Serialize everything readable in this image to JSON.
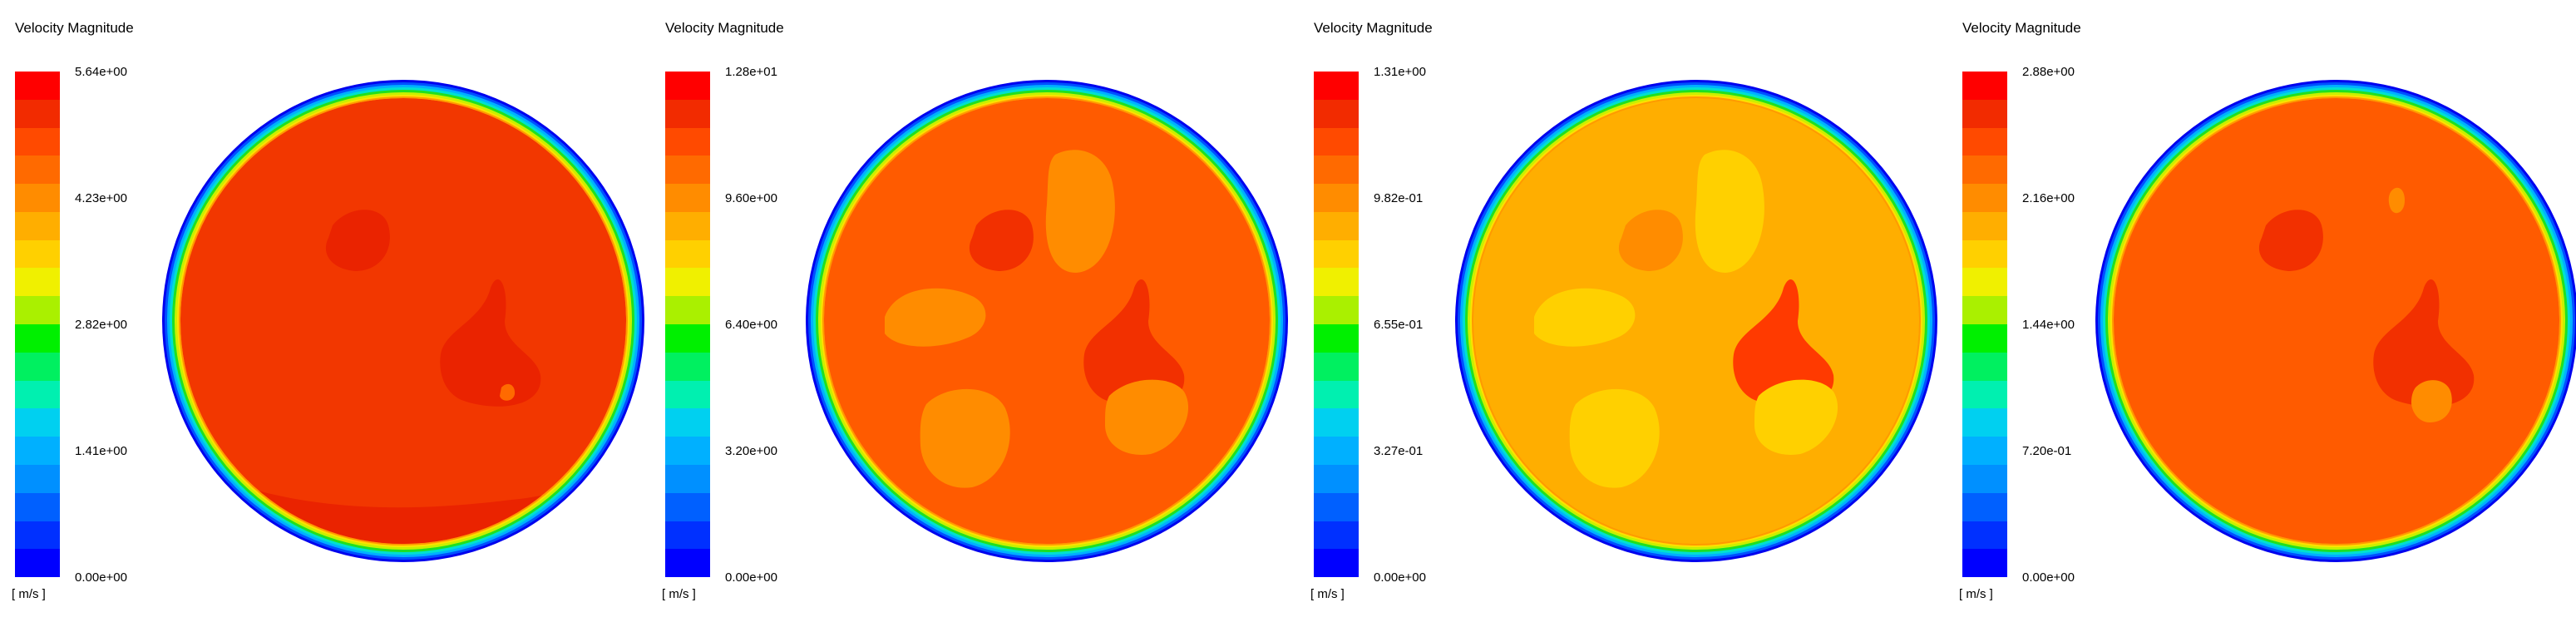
{
  "colormap": [
    "#ff0000",
    "#f22b00",
    "#ff4a00",
    "#ff6a00",
    "#ff8c00",
    "#ffae00",
    "#ffd000",
    "#f0f000",
    "#aaf000",
    "#00f000",
    "#00f060",
    "#00f0b0",
    "#00d0f0",
    "#00b0ff",
    "#0090ff",
    "#0060ff",
    "#0030ff",
    "#0000ff"
  ],
  "panels": [
    {
      "title": "Velocity Magnitude",
      "unit": "[ m/s ]",
      "ticks": [
        "5.64e+00",
        "4.23e+00",
        "2.82e+00",
        "1.41e+00",
        "0.00e+00"
      ],
      "field": {
        "base": "#f23700",
        "blobs": [
          {
            "color": "#ea2300",
            "shape": "hook-left"
          },
          {
            "color": "#ea2300",
            "shape": "hook-right"
          },
          {
            "color": "#ff6a00",
            "shape": "dot"
          },
          {
            "color": "#ea2300",
            "shape": "bottom-band"
          }
        ]
      }
    },
    {
      "title": "Velocity Magnitude",
      "unit": "[ m/s ]",
      "ticks": [
        "1.28e+01",
        "9.60e+00",
        "6.40e+00",
        "3.20e+00",
        "0.00e+00"
      ],
      "field": {
        "base": "#ff5b00",
        "blobs": [
          {
            "color": "#f23000",
            "shape": "hook-left"
          },
          {
            "color": "#ff8c00",
            "shape": "oval-top"
          },
          {
            "color": "#ff8c00",
            "shape": "oval-left"
          },
          {
            "color": "#f23000",
            "shape": "hook-right"
          },
          {
            "color": "#ff8c00",
            "shape": "oval-bottom-left"
          },
          {
            "color": "#ff8c00",
            "shape": "oval-right"
          }
        ]
      }
    },
    {
      "title": "Velocity Magnitude",
      "unit": "[ m/s ]",
      "ticks": [
        "1.31e+00",
        "9.82e-01",
        "6.55e-01",
        "3.27e-01",
        "0.00e+00"
      ],
      "field": {
        "base": "#ffae00",
        "blobs": [
          {
            "color": "#ff8c00",
            "shape": "hook-left"
          },
          {
            "color": "#ffd000",
            "shape": "oval-top"
          },
          {
            "color": "#ffd000",
            "shape": "oval-left"
          },
          {
            "color": "#ff3a00",
            "shape": "hook-right"
          },
          {
            "color": "#ffd000",
            "shape": "oval-bottom-left"
          },
          {
            "color": "#ffd000",
            "shape": "oval-right"
          }
        ]
      }
    },
    {
      "title": "Velocity Magnitude",
      "unit": "[ m/s ]",
      "ticks": [
        "2.88e+00",
        "2.16e+00",
        "1.44e+00",
        "7.20e-01",
        "0.00e+00"
      ],
      "field": {
        "base": "#ff5b00",
        "blobs": [
          {
            "color": "#f23000",
            "shape": "hook-left"
          },
          {
            "color": "#ff8c00",
            "shape": "dot-top"
          },
          {
            "color": "#f23000",
            "shape": "hook-right"
          },
          {
            "color": "#ff8c00",
            "shape": "oval-right-small"
          }
        ]
      }
    }
  ]
}
